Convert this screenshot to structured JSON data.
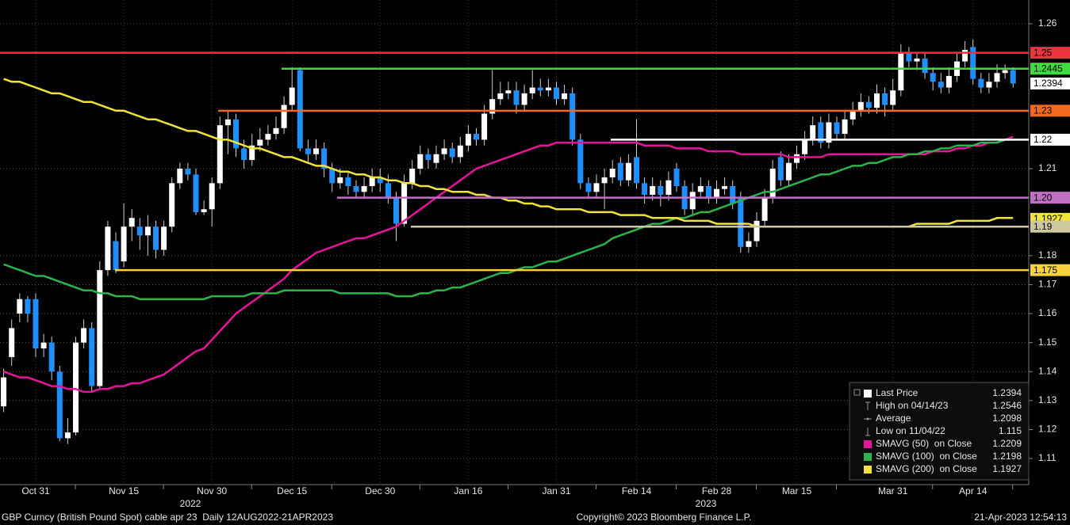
{
  "chart_data": {
    "type": "candlestick",
    "categories": [
      null,
      null,
      null,
      null,
      "Oct 31",
      null,
      null,
      null,
      null,
      null,
      null,
      null,
      null,
      null,
      null,
      "Nov 15",
      null,
      null,
      null,
      null,
      null,
      null,
      null,
      null,
      null,
      null,
      "Nov 30",
      null,
      null,
      null,
      null,
      null,
      null,
      null,
      null,
      null,
      "Dec 15",
      null,
      null,
      null,
      null,
      null,
      null,
      null,
      null,
      null,
      null,
      "Dec 30",
      null,
      null,
      null,
      null,
      null,
      null,
      null,
      null,
      null,
      null,
      "Jan 16",
      null,
      null,
      null,
      null,
      null,
      null,
      null,
      null,
      null,
      null,
      "Jan 31",
      null,
      null,
      null,
      null,
      null,
      null,
      null,
      null,
      null,
      "Feb 14",
      null,
      null,
      null,
      null,
      null,
      null,
      null,
      null,
      null,
      "Feb 28",
      null,
      null,
      null,
      null,
      null,
      null,
      null,
      null,
      null,
      "Mar 15",
      null,
      null,
      null,
      null,
      null,
      null,
      null,
      null,
      null,
      null,
      null,
      "Mar 31",
      null,
      null,
      null,
      null,
      null,
      null,
      null,
      null,
      null,
      "Apr 14",
      null,
      null,
      null,
      null,
      null
    ],
    "open": [
      1.128,
      1.145,
      1.16,
      1.165,
      1.165,
      1.148,
      1.15,
      1.14,
      1.117,
      1.119,
      1.15,
      1.155,
      1.135,
      1.175,
      1.185,
      1.178,
      1.19,
      1.19,
      1.187,
      1.19,
      1.182,
      1.19,
      1.205,
      1.21,
      1.208,
      1.195,
      1.196,
      1.205,
      1.225,
      1.227,
      1.217,
      1.213,
      1.218,
      1.22,
      1.222,
      1.224,
      1.232,
      1.244,
      1.217,
      1.215,
      1.217,
      1.21,
      1.205,
      1.207,
      1.204,
      1.202,
      1.204,
      1.207,
      1.205,
      1.2,
      1.191,
      1.205,
      1.21,
      1.215,
      1.212,
      1.215,
      1.217,
      1.214,
      1.218,
      1.222,
      1.22,
      1.229,
      1.234,
      1.236,
      1.237,
      1.232,
      1.236,
      1.238,
      1.237,
      1.238,
      1.234,
      1.236,
      1.22,
      1.205,
      1.202,
      1.205,
      1.207,
      1.212,
      1.206,
      1.214,
      1.205,
      1.201,
      1.204,
      1.201,
      1.21,
      1.204,
      1.196,
      1.202,
      1.204,
      1.2,
      1.203,
      1.204,
      1.2,
      1.183,
      1.185,
      1.192,
      1.2,
      1.214,
      1.206,
      1.212,
      1.215,
      1.22,
      1.226,
      1.219,
      1.226,
      1.222,
      1.227,
      1.23,
      1.233,
      1.231,
      1.236,
      1.232,
      1.237,
      1.25,
      1.247,
      1.248,
      1.243,
      1.24,
      1.238,
      1.242,
      1.247,
      1.252,
      1.241,
      1.238,
      1.24,
      1.243,
      1.244
    ],
    "high": [
      1.141,
      1.158,
      1.167,
      1.166,
      1.167,
      1.153,
      1.152,
      1.142,
      1.124,
      1.152,
      1.158,
      1.157,
      1.178,
      1.192,
      1.188,
      1.198,
      1.196,
      1.193,
      1.194,
      1.192,
      1.192,
      1.207,
      1.212,
      1.212,
      1.21,
      1.199,
      1.207,
      1.228,
      1.23,
      1.229,
      1.22,
      1.222,
      1.224,
      1.225,
      1.228,
      1.235,
      1.245,
      1.245,
      1.22,
      1.22,
      1.219,
      1.212,
      1.21,
      1.209,
      1.206,
      1.207,
      1.21,
      1.21,
      1.208,
      1.202,
      1.208,
      1.213,
      1.218,
      1.217,
      1.218,
      1.22,
      1.219,
      1.221,
      1.225,
      1.224,
      1.232,
      1.244,
      1.24,
      1.24,
      1.24,
      1.239,
      1.244,
      1.241,
      1.241,
      1.24,
      1.239,
      1.238,
      1.222,
      1.207,
      1.208,
      1.21,
      1.213,
      1.214,
      1.215,
      1.227,
      1.207,
      1.207,
      1.206,
      1.209,
      1.212,
      1.206,
      1.205,
      1.207,
      1.206,
      1.206,
      1.207,
      1.206,
      1.202,
      1.188,
      1.195,
      1.203,
      1.213,
      1.216,
      1.215,
      1.218,
      1.223,
      1.228,
      1.228,
      1.229,
      1.228,
      1.23,
      1.233,
      1.236,
      1.235,
      1.239,
      1.238,
      1.241,
      1.253,
      1.252,
      1.25,
      1.25,
      1.245,
      1.243,
      1.245,
      1.25,
      1.254,
      1.2546,
      1.243,
      1.243,
      1.246,
      1.246,
      1.245
    ],
    "low": [
      1.126,
      1.142,
      1.157,
      1.157,
      1.145,
      1.145,
      1.137,
      1.116,
      1.115,
      1.118,
      1.148,
      1.133,
      1.134,
      1.173,
      1.174,
      1.176,
      1.185,
      1.182,
      1.18,
      1.179,
      1.18,
      1.188,
      1.203,
      1.206,
      1.194,
      1.194,
      1.19,
      1.203,
      1.215,
      1.214,
      1.21,
      1.211,
      1.216,
      1.218,
      1.22,
      1.222,
      1.23,
      1.216,
      1.212,
      1.213,
      1.207,
      1.202,
      1.203,
      1.201,
      1.2,
      1.2,
      1.202,
      1.202,
      1.198,
      1.185,
      1.19,
      1.203,
      1.208,
      1.21,
      1.21,
      1.213,
      1.212,
      1.212,
      1.216,
      1.218,
      1.218,
      1.227,
      1.232,
      1.234,
      1.229,
      1.23,
      1.234,
      1.235,
      1.235,
      1.232,
      1.232,
      1.218,
      1.203,
      1.2,
      1.2,
      1.196,
      1.205,
      1.204,
      1.204,
      1.203,
      1.198,
      1.199,
      1.197,
      1.199,
      1.202,
      1.194,
      1.194,
      1.2,
      1.198,
      1.198,
      1.201,
      1.196,
      1.181,
      1.181,
      1.183,
      1.19,
      1.198,
      1.204,
      1.204,
      1.21,
      1.213,
      1.218,
      1.217,
      1.217,
      1.22,
      1.22,
      1.225,
      1.228,
      1.229,
      1.229,
      1.228,
      1.23,
      1.235,
      1.245,
      1.244,
      1.241,
      1.237,
      1.236,
      1.236,
      1.24,
      1.245,
      1.239,
      1.236,
      1.236,
      1.238,
      1.241,
      1.238
    ],
    "close": [
      1.138,
      1.155,
      1.165,
      1.16,
      1.148,
      1.15,
      1.14,
      1.117,
      1.119,
      1.15,
      1.155,
      1.135,
      1.175,
      1.19,
      1.175,
      1.19,
      1.193,
      1.187,
      1.19,
      1.182,
      1.19,
      1.205,
      1.21,
      1.208,
      1.195,
      1.196,
      1.205,
      1.225,
      1.227,
      1.217,
      1.213,
      1.218,
      1.22,
      1.222,
      1.224,
      1.232,
      1.238,
      1.217,
      1.215,
      1.217,
      1.21,
      1.205,
      1.207,
      1.204,
      1.202,
      1.204,
      1.207,
      1.205,
      1.2,
      1.191,
      1.205,
      1.21,
      1.215,
      1.213,
      1.215,
      1.217,
      1.214,
      1.218,
      1.222,
      1.22,
      1.229,
      1.234,
      1.236,
      1.237,
      1.232,
      1.236,
      1.238,
      1.237,
      1.238,
      1.234,
      1.236,
      1.22,
      1.205,
      1.202,
      1.205,
      1.207,
      1.21,
      1.206,
      1.212,
      1.205,
      1.201,
      1.204,
      1.201,
      1.206,
      1.204,
      1.196,
      1.202,
      1.204,
      1.2,
      1.203,
      1.204,
      1.198,
      1.183,
      1.185,
      1.192,
      1.2,
      1.21,
      1.206,
      1.212,
      1.215,
      1.22,
      1.225,
      1.219,
      1.226,
      1.222,
      1.227,
      1.23,
      1.233,
      1.231,
      1.236,
      1.232,
      1.237,
      1.25,
      1.247,
      1.248,
      1.243,
      1.24,
      1.238,
      1.242,
      1.247,
      1.251,
      1.241,
      1.238,
      1.24,
      1.243,
      1.244,
      1.2394
    ],
    "up_color": "#ffffff",
    "down_color": "#1e8fff",
    "series": [
      {
        "name": "SMAVG (50)  on Close",
        "color": "#e6139b",
        "last": 1.2209,
        "values": [
          1.14,
          1.139,
          1.138,
          1.138,
          1.137,
          1.136,
          1.135,
          1.135,
          1.134,
          1.134,
          1.133,
          1.133,
          1.134,
          1.134,
          1.135,
          1.135,
          1.136,
          1.136,
          1.137,
          1.138,
          1.139,
          1.141,
          1.143,
          1.145,
          1.147,
          1.148,
          1.151,
          1.154,
          1.157,
          1.16,
          1.162,
          1.164,
          1.166,
          1.168,
          1.17,
          1.172,
          1.175,
          1.177,
          1.179,
          1.181,
          1.182,
          1.183,
          1.184,
          1.185,
          1.186,
          1.186,
          1.187,
          1.188,
          1.189,
          1.19,
          1.192,
          1.194,
          1.196,
          1.198,
          1.2,
          1.202,
          1.204,
          1.206,
          1.208,
          1.21,
          1.211,
          1.212,
          1.213,
          1.214,
          1.215,
          1.216,
          1.217,
          1.218,
          1.218,
          1.219,
          1.219,
          1.219,
          1.219,
          1.219,
          1.219,
          1.219,
          1.219,
          1.219,
          1.219,
          1.219,
          1.218,
          1.218,
          1.218,
          1.218,
          1.217,
          1.217,
          1.217,
          1.217,
          1.216,
          1.216,
          1.216,
          1.216,
          1.215,
          1.215,
          1.215,
          1.215,
          1.215,
          1.215,
          1.214,
          1.214,
          1.214,
          1.214,
          1.214,
          1.215,
          1.215,
          1.215,
          1.215,
          1.215,
          1.215,
          1.215,
          1.215,
          1.215,
          1.215,
          1.215,
          1.215,
          1.215,
          1.216,
          1.216,
          1.216,
          1.217,
          1.217,
          1.218,
          1.218,
          1.219,
          1.219,
          1.22,
          1.221
        ]
      },
      {
        "name": "SMAVG (100)  on Close",
        "color": "#2db34a",
        "last": 1.2198,
        "values": [
          1.177,
          1.176,
          1.175,
          1.174,
          1.173,
          1.173,
          1.172,
          1.171,
          1.17,
          1.169,
          1.168,
          1.168,
          1.167,
          1.167,
          1.166,
          1.166,
          1.166,
          1.165,
          1.165,
          1.165,
          1.165,
          1.165,
          1.165,
          1.165,
          1.165,
          1.165,
          1.166,
          1.166,
          1.166,
          1.166,
          1.166,
          1.167,
          1.167,
          1.167,
          1.167,
          1.168,
          1.168,
          1.168,
          1.168,
          1.168,
          1.168,
          1.168,
          1.167,
          1.167,
          1.167,
          1.167,
          1.167,
          1.167,
          1.167,
          1.166,
          1.166,
          1.166,
          1.167,
          1.167,
          1.168,
          1.168,
          1.169,
          1.169,
          1.17,
          1.171,
          1.172,
          1.173,
          1.174,
          1.174,
          1.175,
          1.176,
          1.176,
          1.177,
          1.178,
          1.178,
          1.179,
          1.18,
          1.181,
          1.182,
          1.183,
          1.184,
          1.186,
          1.187,
          1.188,
          1.189,
          1.19,
          1.191,
          1.191,
          1.192,
          1.193,
          1.193,
          1.194,
          1.195,
          1.195,
          1.196,
          1.197,
          1.198,
          1.199,
          1.2,
          1.201,
          1.202,
          1.202,
          1.203,
          1.204,
          1.205,
          1.206,
          1.207,
          1.208,
          1.208,
          1.209,
          1.21,
          1.211,
          1.211,
          1.212,
          1.212,
          1.213,
          1.214,
          1.214,
          1.215,
          1.215,
          1.216,
          1.216,
          1.217,
          1.217,
          1.218,
          1.218,
          1.218,
          1.219,
          1.219,
          1.219,
          1.22,
          1.22
        ]
      },
      {
        "name": "SMAVG (200)  on Close",
        "color": "#f2e33a",
        "last": 1.1927,
        "axis_tag": true,
        "values": [
          1.241,
          1.24,
          1.24,
          1.239,
          1.238,
          1.237,
          1.236,
          1.236,
          1.235,
          1.234,
          1.233,
          1.233,
          1.232,
          1.231,
          1.23,
          1.23,
          1.229,
          1.228,
          1.227,
          1.227,
          1.226,
          1.225,
          1.224,
          1.223,
          1.223,
          1.222,
          1.221,
          1.22,
          1.22,
          1.219,
          1.218,
          1.217,
          1.217,
          1.216,
          1.215,
          1.214,
          1.214,
          1.213,
          1.212,
          1.211,
          1.211,
          1.21,
          1.209,
          1.209,
          1.208,
          1.208,
          1.207,
          1.207,
          1.206,
          1.206,
          1.205,
          1.205,
          1.204,
          1.204,
          1.203,
          1.203,
          1.202,
          1.202,
          1.202,
          1.201,
          1.201,
          1.2,
          1.2,
          1.199,
          1.199,
          1.198,
          1.198,
          1.197,
          1.197,
          1.196,
          1.196,
          1.196,
          1.196,
          1.195,
          1.195,
          1.195,
          1.195,
          1.194,
          1.194,
          1.194,
          1.194,
          1.193,
          1.193,
          1.193,
          1.193,
          1.192,
          1.192,
          1.192,
          1.192,
          1.191,
          1.191,
          1.191,
          1.191,
          1.191,
          1.19,
          1.19,
          1.19,
          1.19,
          1.19,
          1.19,
          1.19,
          1.19,
          1.19,
          1.19,
          1.19,
          1.19,
          1.19,
          1.19,
          1.19,
          1.19,
          1.19,
          1.19,
          1.19,
          1.19,
          1.191,
          1.191,
          1.191,
          1.191,
          1.191,
          1.192,
          1.192,
          1.192,
          1.192,
          1.192,
          1.193,
          1.193,
          1.193
        ]
      }
    ],
    "stats": [
      {
        "name": "Last Price",
        "value": 1.2394,
        "color": "#ffffff",
        "axis_tag": true
      },
      {
        "name": "High on 04/14/23",
        "value": 1.2546
      },
      {
        "name": "Average",
        "value": 1.2098
      },
      {
        "name": "Low on 11/04/22",
        "value": 1.115
      }
    ],
    "levels": [
      {
        "value": 1.25,
        "color": "#ee3340"
      },
      {
        "value": 1.2445,
        "color": "#3fdc3f"
      },
      {
        "value": 1.23,
        "color": "#f26a1e"
      },
      {
        "value": 1.22,
        "color": "#ffffff"
      },
      {
        "value": {
          "value": 1.2,
          "label": "1.20"
        },
        "color": "#c070c4"
      },
      {
        "value": 1.19,
        "color": "#cdc8a0"
      },
      {
        "value": 1.175,
        "color": "#f7d23a"
      }
    ],
    "ylim": [
      1.101,
      1.2682
    ],
    "yticks": [
      1.26,
      1.21,
      1.18,
      1.17,
      1.16,
      1.15,
      1.14,
      1.13,
      1.12,
      1.11
    ],
    "grid": true,
    "year_labels": [
      "2022",
      "2023"
    ],
    "footer": {
      "left": "GBP Curncy (British Pound Spot) cable apr 23  Daily 12AUG2022-21APR2023",
      "center": "Copyright© 2023 Bloomberg Finance L.P.",
      "right": "21-Apr-2023 12:54:13"
    }
  }
}
